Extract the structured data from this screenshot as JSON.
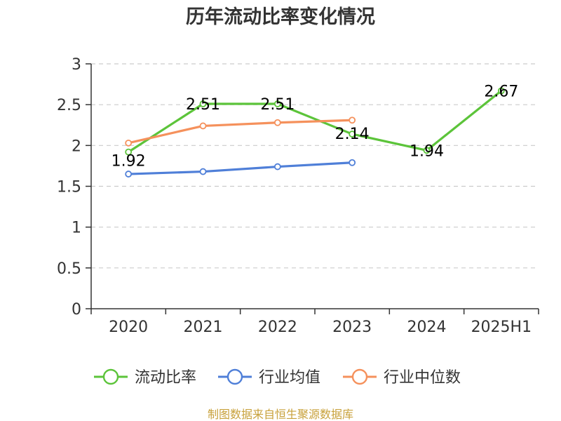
{
  "chart_data": {
    "type": "line",
    "title": "历年流动比率变化情况",
    "categories": [
      "2020",
      "2021",
      "2022",
      "2023",
      "2024",
      "2025H1"
    ],
    "ylim": [
      0,
      3
    ],
    "yticks": [
      "0",
      "0.5",
      "1",
      "1.5",
      "2",
      "2.5",
      "3"
    ],
    "grid": true,
    "legend_position": "bottom",
    "series": [
      {
        "name": "流动比率",
        "color": "#5cc43a",
        "values": [
          1.92,
          2.51,
          2.51,
          2.14,
          1.94,
          2.67
        ],
        "labels": [
          "1.92",
          "2.51",
          "2.51",
          "2.14",
          "1.94",
          "2.67"
        ]
      },
      {
        "name": "行业均值",
        "color": "#4f7fd8",
        "values": [
          1.65,
          1.68,
          1.74,
          1.79,
          null,
          null
        ]
      },
      {
        "name": "行业中位数",
        "color": "#f5915c",
        "values": [
          2.03,
          2.24,
          2.28,
          2.31,
          null,
          null
        ]
      }
    ],
    "source": "制图数据来自恒生聚源数据库"
  }
}
